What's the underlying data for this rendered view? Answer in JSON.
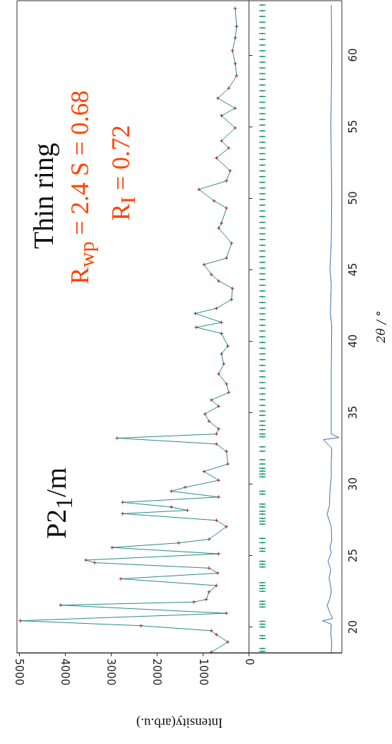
{
  "chart_data": {
    "type": "line",
    "xlabel": "Intensity(arb.u.)",
    "ylabel": "2θ / °",
    "annotations": [
      "P2$_{1}$/m",
      "Thin ring",
      "R$_{wp}$ =  2.4 S = 0.68",
      "R$_{I}$ =  0.72"
    ],
    "xlim": [
      5050,
      -2020
    ],
    "ylim": [
      18.2,
      63.8
    ],
    "xticks": [
      0,
      1000,
      2000,
      3000,
      4000,
      5000
    ],
    "yticks": [
      20,
      25,
      30,
      35,
      40,
      45,
      50,
      55,
      60
    ],
    "series": [
      {
        "type": "line",
        "color": "#2a8a8a",
        "marker": "none",
        "x": [
          820,
          460,
          710,
          820,
          2350,
          4980,
          490,
          4100,
          1200,
          930,
          870,
          710,
          2790,
          680,
          870,
          3360,
          3550,
          660,
          2980,
          1530,
          870,
          490,
          710,
          2750,
          1340,
          1690,
          2750,
          660,
          1690,
          1390,
          660,
          980,
          460,
          490,
          710,
          2870,
          710,
          660,
          870,
          960,
          660,
          820,
          440,
          490,
          660,
          550,
          600,
          460,
          600,
          1150,
          600,
          1170,
          710,
          380,
          360,
          660,
          820,
          980,
          490,
          380,
          660,
          600,
          490,
          760,
          1090,
          490,
          410,
          710,
          440,
          600,
          300,
          600,
          300,
          680,
          440,
          270,
          300,
          360,
          300,
          270,
          300
        ],
        "values": [
          18.25,
          18.95,
          19.47,
          19.74,
          20.09,
          20.44,
          20.96,
          21.53,
          21.75,
          21.93,
          22.46,
          22.9,
          23.37,
          23.77,
          24.12,
          24.5,
          24.68,
          25.12,
          25.56,
          25.88,
          26.14,
          27.02,
          27.46,
          27.93,
          28.16,
          28.39,
          28.72,
          29.09,
          29.5,
          29.77,
          30.26,
          30.88,
          31.4,
          32.28,
          32.8,
          33.21,
          33.5,
          33.86,
          34.39,
          34.9,
          35.44,
          35.88,
          36.4,
          37.0,
          37.7,
          38.4,
          39.1,
          39.65,
          40.53,
          40.96,
          41.3,
          41.93,
          42.28,
          42.9,
          43.68,
          44.2,
          44.65,
          45.35,
          45.8,
          46.84,
          47.9,
          48.25,
          49.3,
          49.8,
          50.6,
          51.2,
          51.9,
          52.8,
          53.5,
          54.0,
          54.9,
          55.76,
          56.28,
          56.98,
          57.68,
          58.55,
          59.4,
          60.3,
          61.2,
          62.0,
          63.26
        ]
      },
      {
        "type": "scatter",
        "color": "#8b1010",
        "marker": "cross",
        "x": [
          820,
          460,
          710,
          820,
          2350,
          4980,
          490,
          4100,
          1200,
          930,
          870,
          710,
          2790,
          680,
          870,
          3360,
          3550,
          660,
          2980,
          1530,
          870,
          490,
          710,
          2750,
          1340,
          1690,
          2750,
          660,
          1690,
          1390,
          660,
          980,
          460,
          490,
          710,
          2870,
          710,
          660,
          870,
          960,
          660,
          820,
          440,
          490,
          660,
          550,
          600,
          460,
          600,
          1150,
          600,
          1170,
          710,
          380,
          360,
          660,
          820,
          980,
          490,
          380,
          660,
          600,
          490,
          760,
          1090,
          490,
          410,
          710,
          440,
          600,
          300,
          600,
          300,
          680,
          440,
          270,
          300,
          360,
          300,
          270,
          300
        ],
        "values": [
          18.25,
          18.95,
          19.47,
          19.74,
          20.09,
          20.44,
          20.96,
          21.53,
          21.75,
          21.93,
          22.46,
          22.9,
          23.37,
          23.77,
          24.12,
          24.5,
          24.68,
          25.12,
          25.56,
          25.88,
          26.14,
          27.02,
          27.46,
          27.93,
          28.16,
          28.39,
          28.72,
          29.09,
          29.5,
          29.77,
          30.26,
          30.88,
          31.4,
          32.28,
          32.8,
          33.21,
          33.5,
          33.86,
          34.39,
          34.9,
          35.44,
          35.88,
          36.4,
          37.0,
          37.7,
          38.4,
          39.1,
          39.65,
          40.53,
          40.96,
          41.3,
          41.93,
          42.28,
          42.9,
          43.68,
          44.2,
          44.65,
          45.35,
          45.8,
          46.84,
          47.9,
          48.25,
          49.3,
          49.8,
          50.6,
          51.2,
          51.9,
          52.8,
          53.5,
          54.0,
          54.9,
          55.76,
          56.28,
          56.98,
          57.68,
          58.55,
          59.4,
          60.3,
          61.2,
          62.0,
          63.26
        ]
      },
      {
        "type": "scatter",
        "color": "#0a9060",
        "marker": "square",
        "values": [
          18.3,
          18.5,
          19.2,
          19.4,
          20.0,
          20.2,
          20.4,
          21.4,
          21.6,
          21.8,
          22.5,
          22.7,
          22.9,
          23.1,
          24.2,
          24.4,
          24.6,
          25.3,
          25.5,
          25.9,
          26.2,
          27.2,
          27.4,
          27.6,
          27.9,
          28.1,
          28.4,
          28.6,
          29.3,
          29.5,
          30.5,
          30.7,
          30.9,
          31.1,
          31.4,
          31.7,
          32.3,
          32.6,
          33.3,
          33.5,
          33.8,
          34.1,
          34.4,
          34.8,
          35.1,
          35.5,
          35.9,
          36.3,
          36.7,
          37.1,
          37.5,
          37.9,
          38.3,
          38.7,
          39.1,
          39.5,
          39.9,
          40.3,
          40.7,
          41.1,
          41.5,
          41.9,
          42.3,
          42.7,
          43.1,
          43.5,
          43.9,
          44.3,
          44.7,
          45.1,
          45.5,
          45.9,
          46.3,
          46.7,
          47.1,
          47.5,
          47.9,
          48.3,
          48.7,
          49.1,
          49.5,
          49.9,
          50.3,
          50.7,
          51.1,
          51.5,
          51.9,
          52.3,
          52.7,
          53.1,
          53.5,
          53.9,
          54.3,
          54.7,
          55.1,
          55.5,
          55.9,
          56.3,
          56.7,
          57.1,
          57.5,
          57.9,
          58.3,
          58.7,
          59.1,
          59.5,
          59.9,
          60.3,
          60.7,
          61.1,
          61.5,
          61.9,
          62.3,
          62.7,
          63.1,
          63.5
        ],
        "x": [
          -290,
          -290,
          -290,
          -290,
          -290,
          -290,
          -290,
          -290,
          -290,
          -290,
          -290,
          -290,
          -290,
          -290,
          -290,
          -290,
          -290,
          -290,
          -290,
          -290,
          -290,
          -290,
          -290,
          -290,
          -290,
          -290,
          -290,
          -290,
          -290,
          -290,
          -290,
          -290,
          -290,
          -290,
          -290,
          -290,
          -290,
          -290,
          -290,
          -290,
          -290,
          -290,
          -290,
          -290,
          -290,
          -290,
          -290,
          -290,
          -290,
          -290,
          -290,
          -290,
          -290,
          -290,
          -290,
          -290,
          -290,
          -290,
          -290,
          -290,
          -290,
          -290,
          -290,
          -290,
          -290,
          -290,
          -290,
          -290,
          -290,
          -290,
          -290,
          -290,
          -290,
          -290,
          -290,
          -290,
          -290,
          -290,
          -290,
          -290,
          -290,
          -290,
          -290,
          -290,
          -290,
          -290,
          -290,
          -290,
          -290,
          -290,
          -290,
          -290,
          -290,
          -290,
          -290,
          -290,
          -290,
          -290,
          -290,
          -290,
          -290,
          -290,
          -290,
          -290,
          -290,
          -290,
          -290,
          -290,
          -290,
          -290,
          -290,
          -290,
          -290,
          -290,
          -290,
          -290
        ],
        "xerrors": [
          70,
          70,
          70,
          70,
          70,
          70,
          70,
          70,
          70,
          70,
          70,
          70,
          70,
          70,
          70,
          70,
          70,
          70,
          70,
          70,
          70,
          70,
          70,
          70,
          70,
          70,
          70,
          70,
          70,
          70,
          70,
          70,
          70,
          70,
          70,
          70,
          70,
          70,
          70,
          70,
          70,
          70,
          70,
          70,
          70,
          70,
          70,
          70,
          70,
          70,
          70,
          70,
          70,
          70,
          70,
          70,
          70,
          70,
          70,
          70,
          70,
          70,
          70,
          70,
          70,
          70,
          70,
          70,
          70,
          70,
          70,
          70,
          70,
          70,
          70,
          70,
          70,
          70,
          70,
          70,
          70,
          70,
          70,
          70,
          70,
          70,
          70,
          70,
          70,
          70,
          70,
          70,
          70,
          70,
          70,
          70,
          70,
          70,
          70,
          70,
          70,
          70,
          70,
          70,
          70,
          70,
          70,
          70,
          70,
          70,
          70,
          70,
          70,
          70,
          70,
          70
        ]
      },
      {
        "type": "line",
        "color": "#3a6fb0",
        "marker": "none",
        "x": [
          -1790,
          -1800,
          -1780,
          -1790,
          -1600,
          -1820,
          -1760,
          -1700,
          -1760,
          -1790,
          -1770,
          -1740,
          -1780,
          -1720,
          -1790,
          -1760,
          -1800,
          -1790,
          -1700,
          -1750,
          -1760,
          -1790,
          -1790,
          -1800,
          -1620,
          -1960,
          -1790,
          -1790,
          -1790,
          -1800,
          -1770,
          -1790,
          -1760,
          -1790,
          -1800,
          -1790,
          -1780,
          -1790,
          -1800,
          -1790
        ],
        "values": [
          18.2,
          19,
          19.5,
          20.2,
          20.44,
          20.6,
          21,
          21.5,
          22,
          22.5,
          23,
          23.4,
          24,
          24.6,
          25.2,
          25.6,
          26,
          27,
          27.9,
          28.5,
          29.5,
          30.5,
          31.5,
          32.5,
          33.1,
          33.25,
          33.5,
          35,
          38,
          41,
          42,
          44,
          45,
          47,
          50,
          53,
          55,
          57,
          60,
          63.5
        ]
      }
    ]
  }
}
